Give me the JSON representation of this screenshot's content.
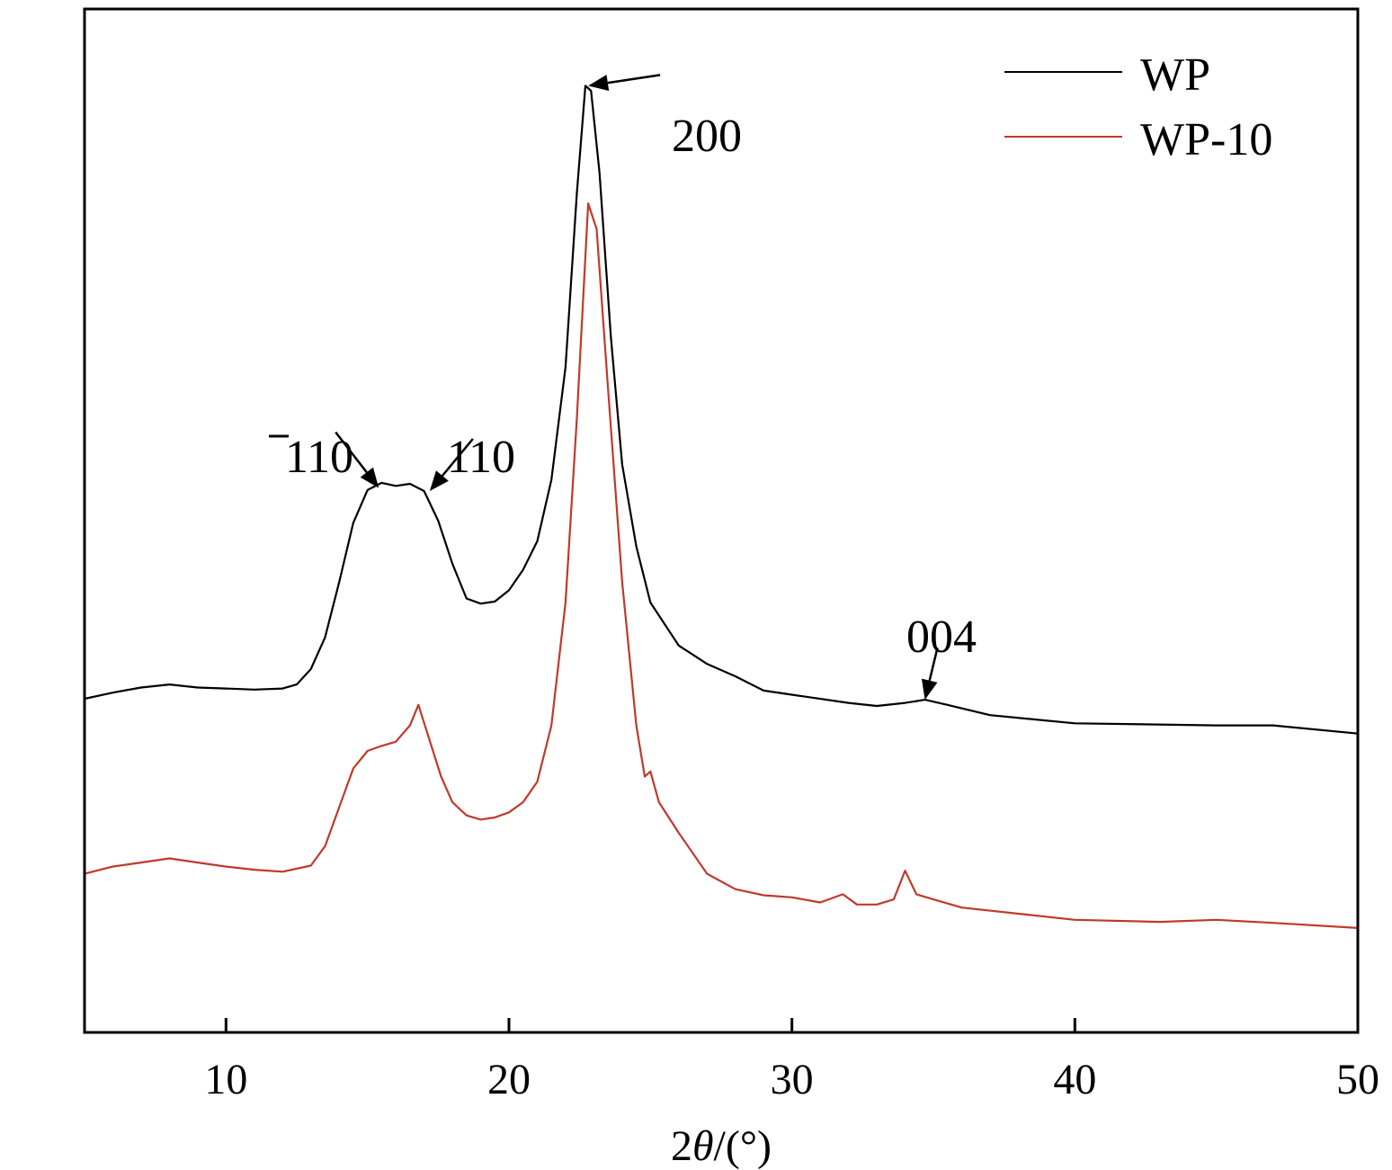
{
  "chart_data": {
    "type": "line",
    "xlabel": "2θ/(°)",
    "xlabel_parts": {
      "prefix": "2",
      "symbol": "θ",
      "suffix": "/(°)"
    },
    "ylabel": "",
    "xlim": [
      5,
      50
    ],
    "ylim": [
      0,
      1
    ],
    "x_ticks": [
      10,
      20,
      30,
      40,
      50
    ],
    "y_ticks_shown": false,
    "grid": false,
    "legend_position": "top-right",
    "series": [
      {
        "name": "WP",
        "color": "#000000",
        "points": [
          [
            5,
            0.326
          ],
          [
            6,
            0.332
          ],
          [
            7,
            0.337
          ],
          [
            8,
            0.34
          ],
          [
            9,
            0.337
          ],
          [
            10,
            0.336
          ],
          [
            11,
            0.335
          ],
          [
            12,
            0.336
          ],
          [
            12.5,
            0.34
          ],
          [
            13,
            0.355
          ],
          [
            13.5,
            0.386
          ],
          [
            14,
            0.44
          ],
          [
            14.5,
            0.498
          ],
          [
            15,
            0.53
          ],
          [
            15.5,
            0.537
          ],
          [
            16,
            0.534
          ],
          [
            16.5,
            0.536
          ],
          [
            17,
            0.529
          ],
          [
            17.5,
            0.5
          ],
          [
            18,
            0.458
          ],
          [
            18.5,
            0.424
          ],
          [
            19,
            0.419
          ],
          [
            19.5,
            0.421
          ],
          [
            20,
            0.432
          ],
          [
            20.5,
            0.452
          ],
          [
            21,
            0.48
          ],
          [
            21.5,
            0.54
          ],
          [
            22,
            0.65
          ],
          [
            22.4,
            0.82
          ],
          [
            22.7,
            0.925
          ],
          [
            22.9,
            0.92
          ],
          [
            23.2,
            0.84
          ],
          [
            23.6,
            0.68
          ],
          [
            24,
            0.555
          ],
          [
            24.5,
            0.475
          ],
          [
            25,
            0.42
          ],
          [
            26,
            0.378
          ],
          [
            27,
            0.36
          ],
          [
            28,
            0.348
          ],
          [
            29,
            0.334
          ],
          [
            30,
            0.33
          ],
          [
            32,
            0.322
          ],
          [
            33,
            0.319
          ],
          [
            34,
            0.322
          ],
          [
            34.7,
            0.325
          ],
          [
            35.5,
            0.32
          ],
          [
            37,
            0.31
          ],
          [
            40,
            0.302
          ],
          [
            45,
            0.3
          ],
          [
            47,
            0.3
          ],
          [
            50,
            0.292
          ]
        ]
      },
      {
        "name": "WP-10",
        "color": "#c0392b",
        "points": [
          [
            5,
            0.155
          ],
          [
            6,
            0.162
          ],
          [
            7,
            0.166
          ],
          [
            8,
            0.17
          ],
          [
            9,
            0.166
          ],
          [
            10,
            0.162
          ],
          [
            11,
            0.159
          ],
          [
            12,
            0.157
          ],
          [
            13,
            0.163
          ],
          [
            13.5,
            0.182
          ],
          [
            14,
            0.22
          ],
          [
            14.5,
            0.258
          ],
          [
            15,
            0.275
          ],
          [
            15.5,
            0.28
          ],
          [
            16,
            0.284
          ],
          [
            16.5,
            0.3
          ],
          [
            16.8,
            0.32
          ],
          [
            17.2,
            0.285
          ],
          [
            17.6,
            0.25
          ],
          [
            18,
            0.225
          ],
          [
            18.5,
            0.212
          ],
          [
            19,
            0.208
          ],
          [
            19.5,
            0.21
          ],
          [
            20,
            0.215
          ],
          [
            20.5,
            0.225
          ],
          [
            21,
            0.245
          ],
          [
            21.5,
            0.3
          ],
          [
            22,
            0.42
          ],
          [
            22.4,
            0.6
          ],
          [
            22.8,
            0.81
          ],
          [
            23.1,
            0.785
          ],
          [
            23.5,
            0.63
          ],
          [
            24,
            0.44
          ],
          [
            24.5,
            0.3
          ],
          [
            24.8,
            0.25
          ],
          [
            25,
            0.255
          ],
          [
            25.3,
            0.225
          ],
          [
            26,
            0.195
          ],
          [
            27,
            0.155
          ],
          [
            28,
            0.14
          ],
          [
            29,
            0.134
          ],
          [
            30,
            0.132
          ],
          [
            31,
            0.127
          ],
          [
            31.8,
            0.135
          ],
          [
            32.3,
            0.125
          ],
          [
            33,
            0.125
          ],
          [
            33.6,
            0.13
          ],
          [
            34,
            0.158
          ],
          [
            34.4,
            0.135
          ],
          [
            35,
            0.13
          ],
          [
            36,
            0.122
          ],
          [
            38,
            0.116
          ],
          [
            40,
            0.11
          ],
          [
            43,
            0.108
          ],
          [
            45,
            0.11
          ],
          [
            47,
            0.107
          ],
          [
            50,
            0.102
          ]
        ]
      }
    ],
    "annotations": [
      {
        "label": "110",
        "overbar_on_first": true,
        "series": "WP",
        "x": 15.4,
        "y": 0.532
      },
      {
        "label": "110",
        "overbar_on_first": false,
        "series": "WP",
        "x": 17.2,
        "y": 0.529
      },
      {
        "label": "200",
        "overbar_on_first": false,
        "series": "WP",
        "x": 22.8,
        "y": 0.925
      },
      {
        "label": "004",
        "overbar_on_first": false,
        "series": "WP",
        "x": 34.7,
        "y": 0.325
      }
    ]
  }
}
